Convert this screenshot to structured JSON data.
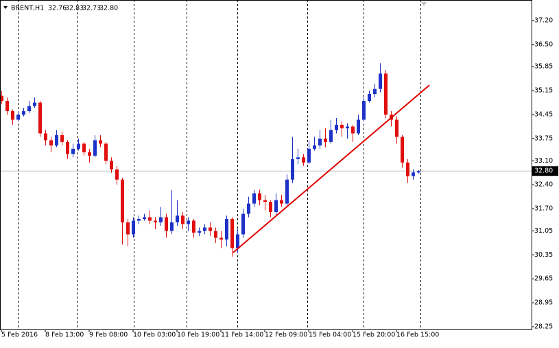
{
  "chart_data": {
    "type": "candlestick",
    "symbol": "BRENT,H1",
    "header_values": [
      "32.76",
      "32.83",
      "32.73",
      "32.80"
    ],
    "bull_color": "#1e32c8",
    "bear_color": "#e01010",
    "series": [
      {
        "open": [
          35.0,
          34.85,
          34.55,
          34.3,
          34.45,
          34.55,
          34.7,
          34.8,
          33.9,
          33.7,
          33.55,
          33.85,
          33.65,
          33.3,
          33.45,
          33.6,
          33.35,
          33.25,
          33.7,
          33.6,
          33.1,
          32.85,
          32.55,
          31.3,
          30.95,
          31.35,
          31.4,
          31.45,
          31.35,
          31.3,
          31.45,
          31.05,
          31.3,
          31.5,
          31.25,
          31.35,
          31.0,
          31.05,
          31.15,
          31.05,
          30.85,
          30.8,
          31.4,
          30.55,
          30.95,
          31.55,
          31.85,
          32.15,
          31.95,
          31.9,
          31.6,
          31.95,
          31.85,
          32.55,
          33.15,
          33.2,
          33.05,
          33.45,
          33.55,
          33.75,
          33.65,
          34.0,
          34.15,
          34.05,
          34.1,
          33.9,
          34.3,
          34.85,
          35.05,
          35.2,
          35.65,
          34.45,
          34.3,
          33.8,
          33.05,
          32.65,
          32.76
        ],
        "high": [
          35.15,
          34.95,
          34.6,
          34.55,
          34.65,
          34.85,
          34.95,
          34.85,
          34.0,
          33.8,
          34.0,
          33.95,
          33.7,
          33.6,
          33.75,
          33.65,
          33.45,
          33.85,
          33.85,
          33.65,
          33.2,
          32.95,
          32.6,
          31.4,
          31.45,
          31.5,
          31.55,
          31.65,
          31.45,
          31.75,
          31.55,
          32.25,
          31.95,
          31.6,
          31.45,
          31.4,
          31.15,
          31.25,
          31.3,
          31.15,
          31.05,
          31.5,
          31.45,
          31.1,
          31.7,
          32.05,
          32.25,
          32.25,
          32.1,
          31.95,
          32.15,
          32.1,
          32.7,
          33.8,
          33.45,
          33.3,
          33.7,
          33.8,
          34.0,
          34.05,
          34.3,
          34.35,
          34.25,
          34.2,
          34.15,
          34.45,
          34.95,
          35.15,
          35.35,
          35.95,
          35.75,
          34.55,
          34.4,
          33.85,
          33.15,
          32.85,
          32.83
        ],
        "low": [
          34.75,
          34.45,
          34.15,
          34.25,
          34.4,
          34.5,
          34.65,
          33.8,
          33.55,
          33.35,
          33.5,
          33.55,
          33.15,
          33.2,
          33.4,
          33.25,
          33.05,
          33.2,
          33.5,
          33.0,
          32.75,
          32.4,
          30.65,
          30.6,
          30.85,
          31.25,
          31.35,
          31.25,
          31.1,
          31.2,
          30.85,
          30.95,
          31.2,
          31.1,
          31.05,
          30.85,
          30.9,
          30.95,
          30.9,
          30.7,
          30.55,
          30.6,
          30.3,
          30.4,
          30.85,
          31.45,
          31.75,
          31.8,
          31.65,
          31.45,
          31.5,
          31.75,
          31.8,
          32.45,
          33.0,
          32.95,
          33.0,
          33.4,
          33.45,
          33.5,
          33.6,
          33.9,
          33.8,
          33.75,
          33.65,
          33.85,
          34.25,
          34.8,
          34.95,
          35.1,
          34.35,
          34.1,
          33.6,
          32.9,
          32.45,
          32.55,
          32.73
        ],
        "close": [
          34.85,
          34.55,
          34.3,
          34.45,
          34.55,
          34.7,
          34.8,
          33.9,
          33.7,
          33.55,
          33.85,
          33.65,
          33.3,
          33.45,
          33.6,
          33.35,
          33.25,
          33.7,
          33.6,
          33.1,
          32.85,
          32.55,
          31.3,
          30.95,
          31.35,
          31.4,
          31.45,
          31.35,
          31.3,
          31.45,
          31.05,
          31.3,
          31.5,
          31.25,
          31.35,
          31.0,
          31.05,
          31.15,
          31.05,
          30.85,
          30.8,
          31.4,
          30.55,
          30.95,
          31.55,
          31.85,
          32.15,
          31.95,
          31.9,
          31.6,
          31.95,
          31.85,
          32.55,
          33.15,
          33.2,
          33.05,
          33.45,
          33.55,
          33.75,
          33.65,
          34.0,
          34.15,
          34.05,
          34.1,
          33.9,
          34.3,
          34.85,
          35.05,
          35.2,
          35.65,
          34.45,
          34.3,
          33.8,
          33.05,
          32.65,
          32.76,
          32.8
        ]
      }
    ],
    "xlim": [
      -0.25,
      96.625
    ],
    "ylim": [
      28.17,
      37.8
    ],
    "xticks": [
      {
        "value": 0,
        "label": "5 Feb 2016"
      },
      {
        "value": 8,
        "label": "8 Feb 13:00"
      },
      {
        "value": 16,
        "label": "9 Feb 08:00"
      },
      {
        "value": 24,
        "label": "10 Feb 03:00"
      },
      {
        "value": 32,
        "label": "10 Feb 19:00"
      },
      {
        "value": 40,
        "label": "11 Feb 14:00"
      },
      {
        "value": 48,
        "label": "12 Feb 09:00"
      },
      {
        "value": 56,
        "label": "15 Feb 04:00"
      },
      {
        "value": 64,
        "label": "15 Feb 20:00"
      },
      {
        "value": 72,
        "label": "16 Feb 15:00"
      }
    ],
    "yticks": [
      {
        "value": 37.2,
        "label": "37.20"
      },
      {
        "value": 36.5,
        "label": "36.50"
      },
      35.85,
      35.15,
      34.45,
      33.75,
      {
        "value": 33.1,
        "label": "33.10"
      },
      {
        "value": 32.4,
        "label": "32.40"
      },
      {
        "value": 31.7,
        "label": "31.70"
      },
      31.05,
      30.35,
      29.65,
      28.95,
      28.25
    ],
    "current_price": {
      "value": 32.8,
      "label": "32.80"
    },
    "trendline": {
      "x": [
        42.25,
        78
      ],
      "y": [
        30.42,
        35.31
      ],
      "color": "#e00000"
    }
  }
}
